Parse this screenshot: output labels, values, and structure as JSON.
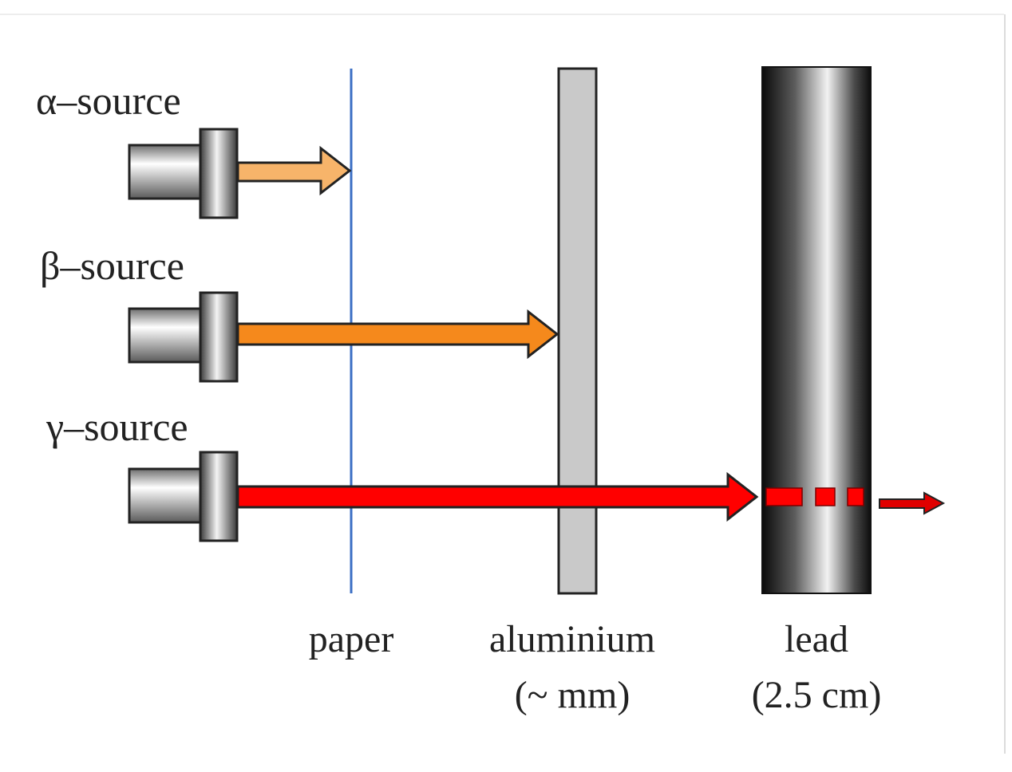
{
  "sources": [
    {
      "label": "α–source",
      "color": "#f7b46a",
      "reach": "paper"
    },
    {
      "label": "β–source",
      "color": "#f5891c",
      "reach": "aluminium"
    },
    {
      "label": "γ–source",
      "color": "#ff0000",
      "reach": "through-lead"
    }
  ],
  "materials": {
    "paper": {
      "name": "paper",
      "thickness": "",
      "color": "#3b6fc4"
    },
    "aluminium": {
      "name": "aluminium",
      "thickness": "(~ mm)",
      "color": "#c9c9c9"
    },
    "lead": {
      "name": "lead",
      "thickness": "(2.5 cm)",
      "color": "#1a1a1a"
    }
  }
}
